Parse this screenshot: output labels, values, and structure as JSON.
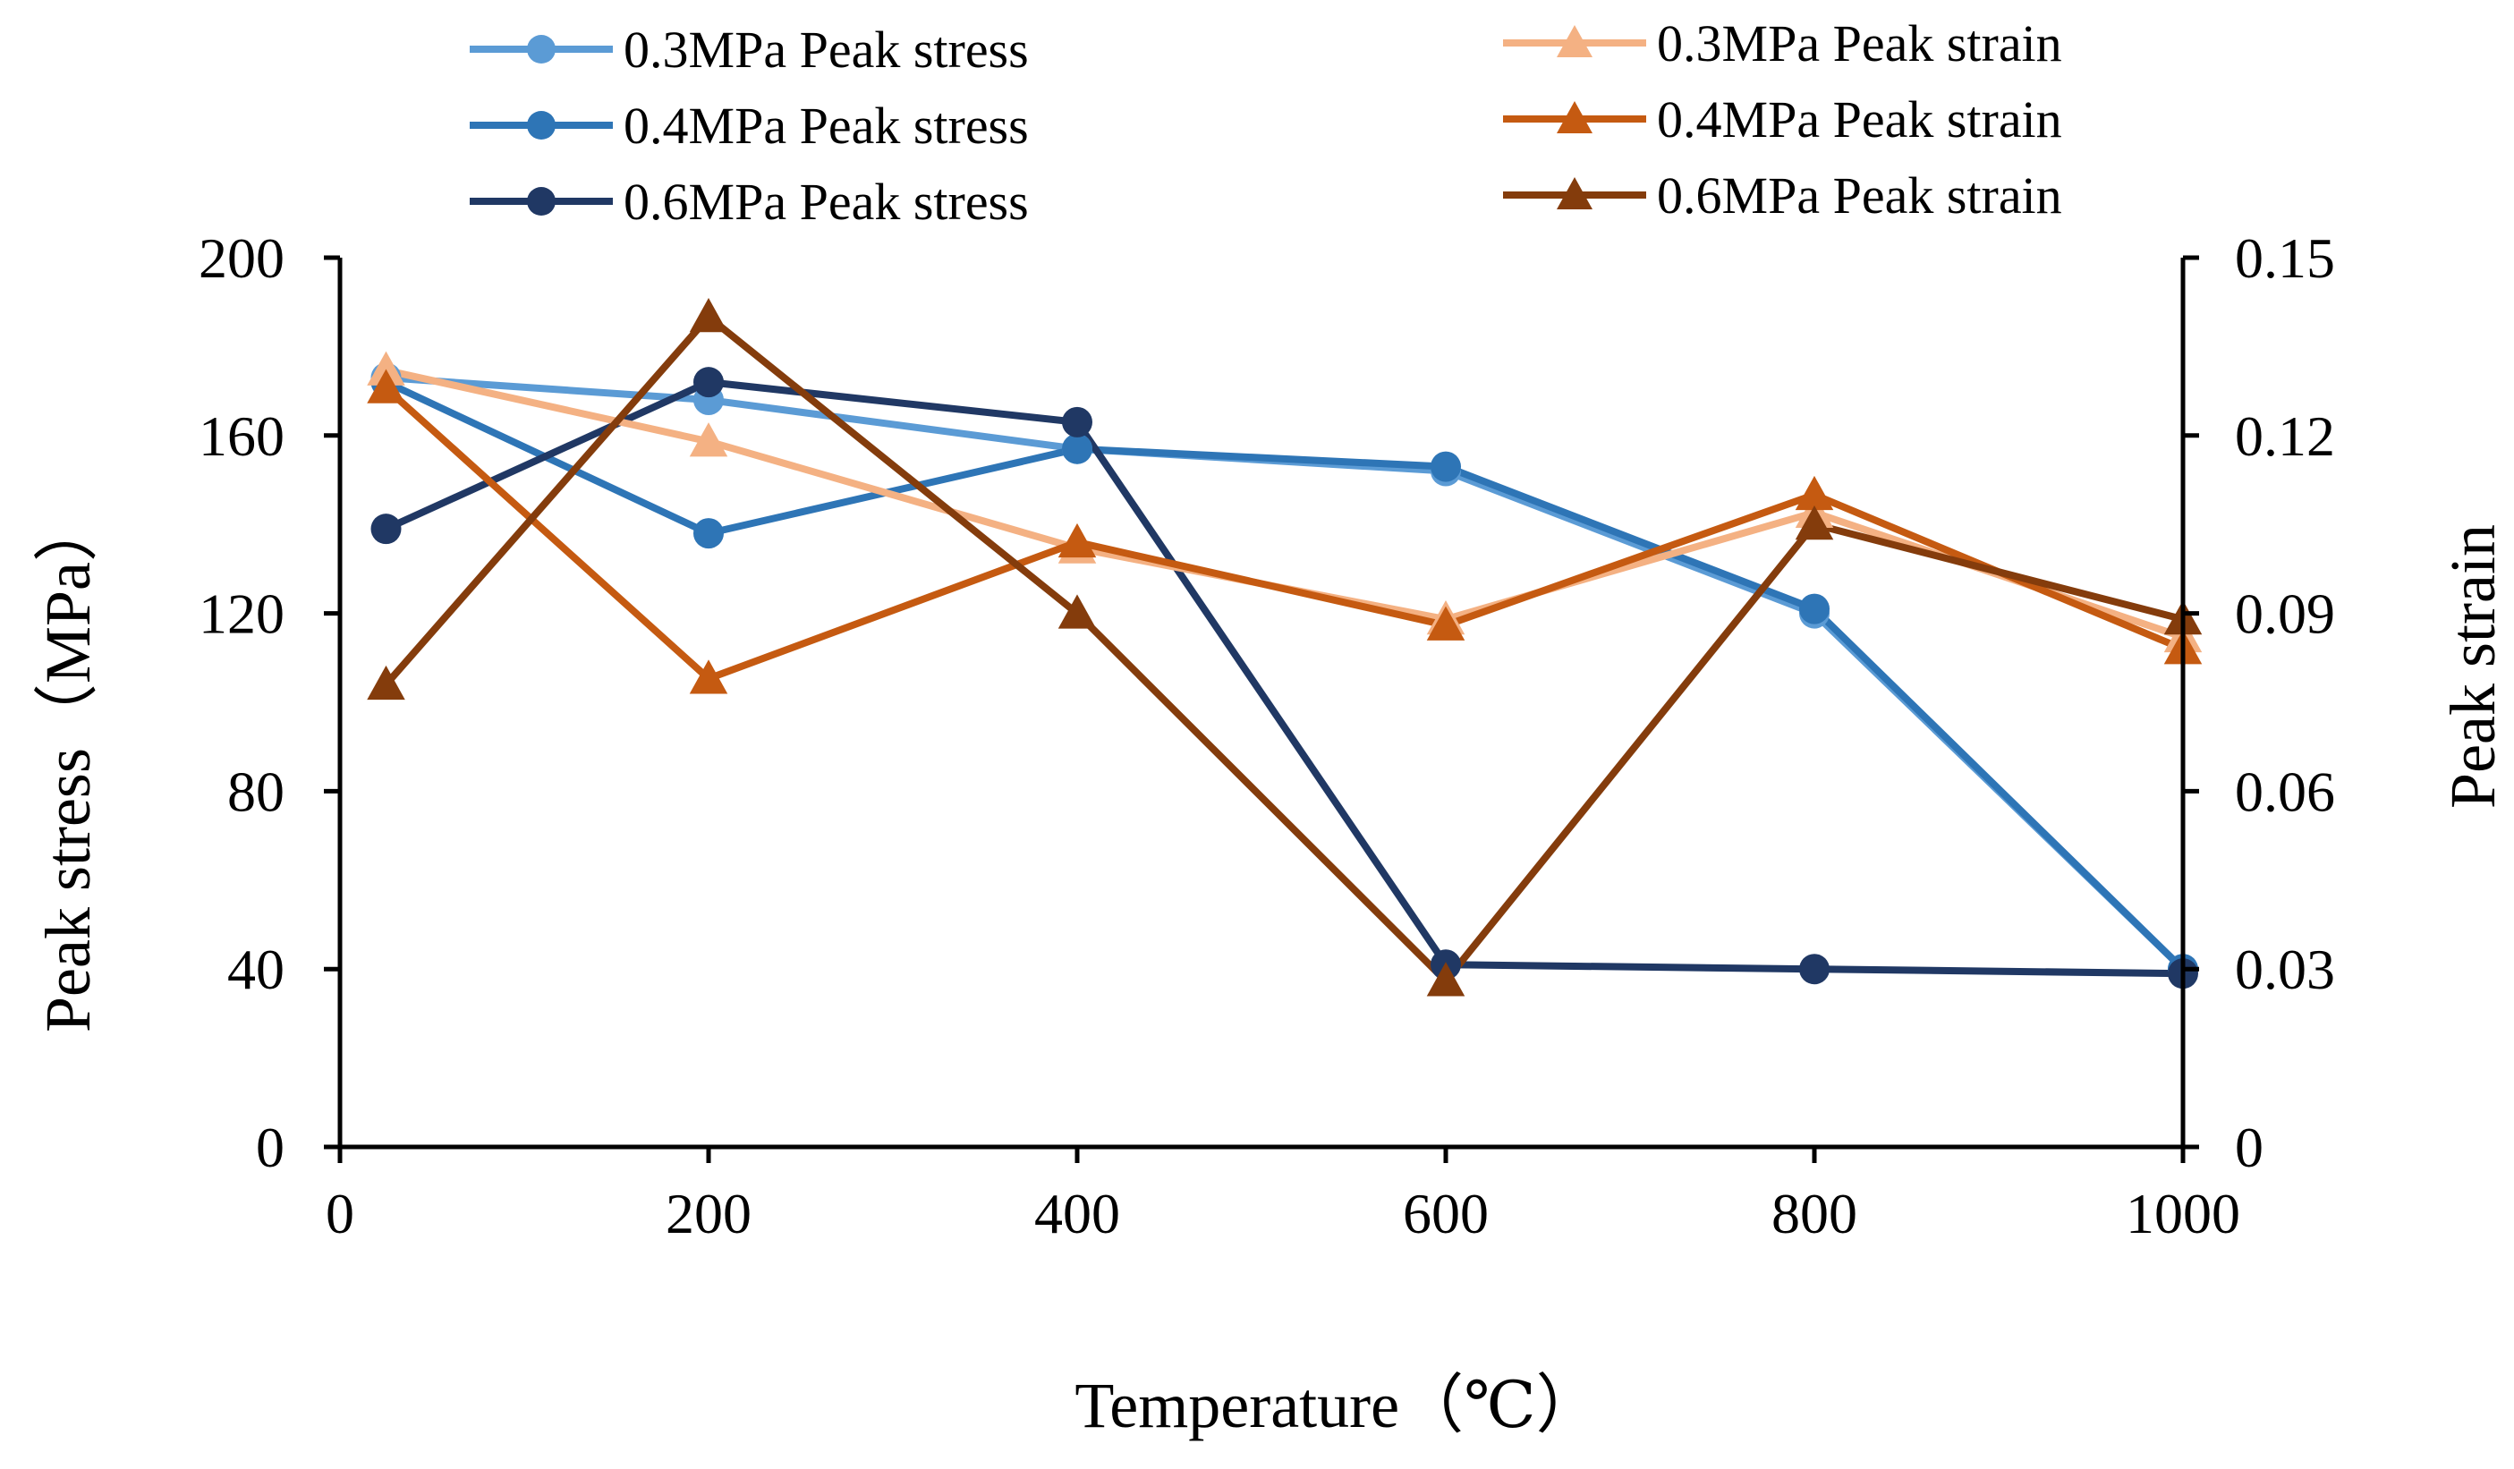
{
  "chart_data": {
    "type": "line",
    "title": "",
    "xlabel": "Temperature（℃）",
    "ylabel": "Peak stress（MPa）",
    "y2label": "Peak strain",
    "xlim": [
      0,
      1000
    ],
    "ylim": [
      0,
      200
    ],
    "y2lim": [
      0,
      0.15
    ],
    "xticks": [
      "0",
      "200",
      "400",
      "600",
      "800",
      "1000"
    ],
    "yticks": [
      "0",
      "40",
      "80",
      "120",
      "160",
      "200"
    ],
    "y2ticks": [
      "0",
      "0.03",
      "0.06",
      "0.09",
      "0.12",
      "0.15"
    ],
    "grid": false,
    "legend_position": "top",
    "series": [
      {
        "name": "0.3MPa Peak stress",
        "axis": "left",
        "marker": "circle",
        "color": "#5B9BD5",
        "x": [
          25,
          200,
          400,
          600,
          800,
          1000
        ],
        "values": [
          173,
          168,
          157,
          152,
          120,
          40
        ]
      },
      {
        "name": "0.4MPa Peak stress",
        "axis": "left",
        "marker": "circle",
        "color": "#2E75B6",
        "x": [
          25,
          200,
          400,
          600,
          800,
          1000
        ],
        "values": [
          172,
          138,
          157,
          153,
          121,
          40
        ]
      },
      {
        "name": "0.6MPa Peak stress",
        "axis": "left",
        "marker": "circle",
        "color": "#203864",
        "x": [
          25,
          200,
          400,
          600,
          800,
          1000
        ],
        "values": [
          139,
          172,
          163,
          41,
          40,
          39
        ]
      },
      {
        "name": "0.3MPa Peak strain",
        "axis": "right",
        "marker": "triangle",
        "color": "#F4B183",
        "x": [
          25,
          200,
          400,
          600,
          800,
          1000
        ],
        "values": [
          0.131,
          0.119,
          0.101,
          0.089,
          0.107,
          0.086
        ]
      },
      {
        "name": "0.4MPa  Peak strain",
        "axis": "right",
        "marker": "triangle",
        "color": "#C55A11",
        "x": [
          25,
          200,
          400,
          600,
          800,
          1000
        ],
        "values": [
          0.128,
          0.079,
          0.102,
          0.088,
          0.11,
          0.084
        ]
      },
      {
        "name": "0.6MPa  Peak strain",
        "axis": "right",
        "marker": "triangle",
        "color": "#843C0C",
        "x": [
          25,
          200,
          400,
          600,
          800,
          1000
        ],
        "values": [
          0.078,
          0.14,
          0.09,
          0.028,
          0.105,
          0.089
        ]
      }
    ]
  }
}
